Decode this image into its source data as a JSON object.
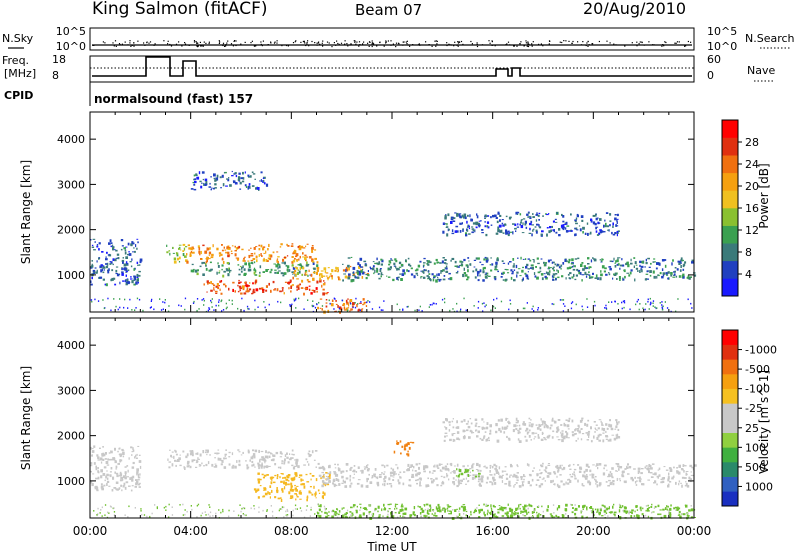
{
  "header": {
    "station": "King Salmon (fitACF)",
    "beam": "Beam 07",
    "date": "20/Aug/2010",
    "mode": "normalsound (fast) 157"
  },
  "strip": {
    "nsky_label": "N.Sky",
    "nsearch_label": "N.Search",
    "noise_tick_hi": "10^5",
    "noise_tick_lo": "10^0",
    "freq_label": "Freq.",
    "freq_unit": "[MHz]",
    "freq_tick_hi": "18",
    "freq_tick_lo": "8",
    "nave_label": "Nave",
    "nave_tick_hi": "60",
    "nave_tick_lo": "0",
    "cpid_label": "CPID"
  },
  "axes": {
    "x_ticks": [
      "00:00",
      "04:00",
      "08:00",
      "12:00",
      "16:00",
      "20:00",
      "00:00"
    ],
    "xlabel": "Time UT",
    "y_ticks": [
      "1000",
      "2000",
      "3000",
      "4000"
    ],
    "ylabel": "Slant Range [km]"
  },
  "colorbars": {
    "power": {
      "label": "Power [dB]",
      "ticks": [
        "4",
        "8",
        "12",
        "16",
        "20",
        "24",
        "28"
      ],
      "colors": [
        "#1a1aff",
        "#2040c0",
        "#3a7a7a",
        "#3aa050",
        "#8ac030",
        "#f0c020",
        "#f5a010",
        "#f07010",
        "#e03010",
        "#ff0000"
      ]
    },
    "velocity": {
      "label": "Velocity [m s^-1]",
      "ticks": [
        "1000",
        "500",
        "100",
        "25",
        "-25",
        "-100",
        "-500",
        "-1000"
      ],
      "colors": [
        "#1a30c0",
        "#3060c0",
        "#2a8a6a",
        "#40b040",
        "#90d040",
        "#c8c8c8",
        "#c8c8c8",
        "#f5c020",
        "#f5a010",
        "#f07010",
        "#e03010",
        "#ff0000"
      ]
    }
  },
  "chart_data": [
    {
      "type": "heatmap",
      "title": "Power",
      "xlabel": "Time UT",
      "ylabel": "Slant Range [km]",
      "xlim": [
        0,
        24
      ],
      "ylim": [
        180,
        4600
      ],
      "colorbar_label": "Power [dB]",
      "colorbar_range": [
        0,
        32
      ],
      "echo_regions": [
        {
          "t_start": 0.0,
          "t_end": 2.0,
          "r_low": 800,
          "r_high": 1800,
          "value": 6
        },
        {
          "t_start": 3.0,
          "t_end": 3.8,
          "r_low": 1300,
          "r_high": 1700,
          "value": 14
        },
        {
          "t_start": 3.8,
          "t_end": 9.0,
          "r_low": 1300,
          "r_high": 1700,
          "value": 22
        },
        {
          "t_start": 4.0,
          "t_end": 9.0,
          "r_low": 1000,
          "r_high": 1300,
          "value": 10
        },
        {
          "t_start": 4.5,
          "t_end": 9.5,
          "r_low": 600,
          "r_high": 900,
          "value": 26
        },
        {
          "t_start": 8.0,
          "t_end": 11.0,
          "r_low": 900,
          "r_high": 1200,
          "value": 20
        },
        {
          "t_start": 9.0,
          "t_end": 11.0,
          "r_low": 200,
          "r_high": 500,
          "value": 24
        },
        {
          "t_start": 10.0,
          "t_end": 24.0,
          "r_low": 900,
          "r_high": 1400,
          "value": 8
        },
        {
          "t_start": 4.0,
          "t_end": 7.0,
          "r_low": 2900,
          "r_high": 3300,
          "value": 6
        },
        {
          "t_start": 14.0,
          "t_end": 21.0,
          "r_low": 1900,
          "r_high": 2400,
          "value": 6
        }
      ]
    },
    {
      "type": "heatmap",
      "title": "Velocity",
      "xlabel": "Time UT",
      "ylabel": "Slant Range [km]",
      "xlim": [
        0,
        24
      ],
      "ylim": [
        180,
        4600
      ],
      "colorbar_label": "Velocity [m s^-1]",
      "colorbar_range": [
        -1000,
        1000
      ],
      "echo_regions": [
        {
          "t_start": 0.0,
          "t_end": 2.0,
          "r_low": 800,
          "r_high": 1800,
          "value": 0
        },
        {
          "t_start": 3.0,
          "t_end": 9.0,
          "r_low": 1300,
          "r_high": 1700,
          "value": 0
        },
        {
          "t_start": 6.5,
          "t_end": 9.5,
          "r_low": 600,
          "r_high": 1200,
          "value": -60
        },
        {
          "t_start": 9.0,
          "t_end": 24.0,
          "r_low": 900,
          "r_high": 1400,
          "value": 0
        },
        {
          "t_start": 12.0,
          "t_end": 12.8,
          "r_low": 1600,
          "r_high": 1900,
          "value": -300
        },
        {
          "t_start": 14.5,
          "t_end": 15.5,
          "r_low": 1100,
          "r_high": 1300,
          "value": 60
        },
        {
          "t_start": 9.0,
          "t_end": 24.0,
          "r_low": 200,
          "r_high": 500,
          "value": 60
        },
        {
          "t_start": 14.0,
          "t_end": 21.0,
          "r_low": 1900,
          "r_high": 2400,
          "value": 0
        }
      ]
    }
  ]
}
